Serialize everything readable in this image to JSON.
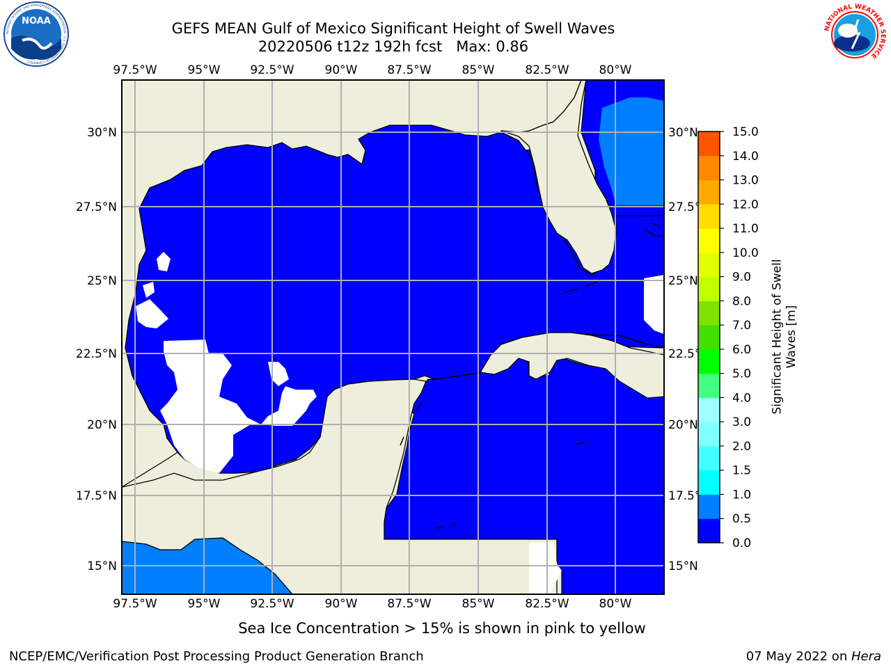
{
  "header": {
    "title_line1": "GEFS MEAN Gulf of Mexico Significant Height of Swell Waves",
    "title_line2": "20220506 t12z 192h fcst   Max: 0.86"
  },
  "logos": {
    "noaa_text": "NOAA",
    "noaa_ring_text": "NATIONAL OCEANIC AND ATMOSPHERIC ADMINISTRATION · U.S. DEPARTMENT OF COMMERCE",
    "nws_ring_text": "NATIONAL WEATHER SERVICE"
  },
  "map": {
    "lon_labels": [
      "97.5°W",
      "95°W",
      "92.5°W",
      "90°W",
      "87.5°W",
      "85°W",
      "82.5°W",
      "80°W"
    ],
    "lat_labels": [
      "30°N",
      "27.5°N",
      "25°N",
      "22.5°N",
      "20°N",
      "17.5°N",
      "15°N"
    ],
    "colors": {
      "land": "#eeeedc",
      "sea_0_05": "#0000ff",
      "sea_05_10": "#0080ff",
      "no_data": "#ffffff",
      "grid": "#b0b0b0"
    }
  },
  "colorbar": {
    "label": "Significant Height of Swell Waves [m]",
    "ticks": [
      "0.0",
      "0.5",
      "1.0",
      "1.5",
      "2.0",
      "3.0",
      "4.0",
      "5.0",
      "6.0",
      "7.0",
      "8.0",
      "9.0",
      "10.0",
      "11.0",
      "12.0",
      "13.0",
      "14.0",
      "15.0"
    ],
    "colors": [
      "#0000ff",
      "#0080ff",
      "#00ffff",
      "#40ffff",
      "#80ffff",
      "#a0ffff",
      "#40ff80",
      "#00ff00",
      "#40e000",
      "#80e000",
      "#c0ff00",
      "#e0ff00",
      "#ffff00",
      "#ffdd00",
      "#ffaa00",
      "#ff8800",
      "#ff5500",
      "#ff2200",
      "#ff0000"
    ]
  },
  "footer": {
    "note": "Sea Ice Concentration > 15% is shown in pink to yellow",
    "left": "NCEP/EMC/Verification Post Processing Product Generation Branch",
    "right_date": "07 May 2022 on ",
    "right_host": "Hera"
  }
}
